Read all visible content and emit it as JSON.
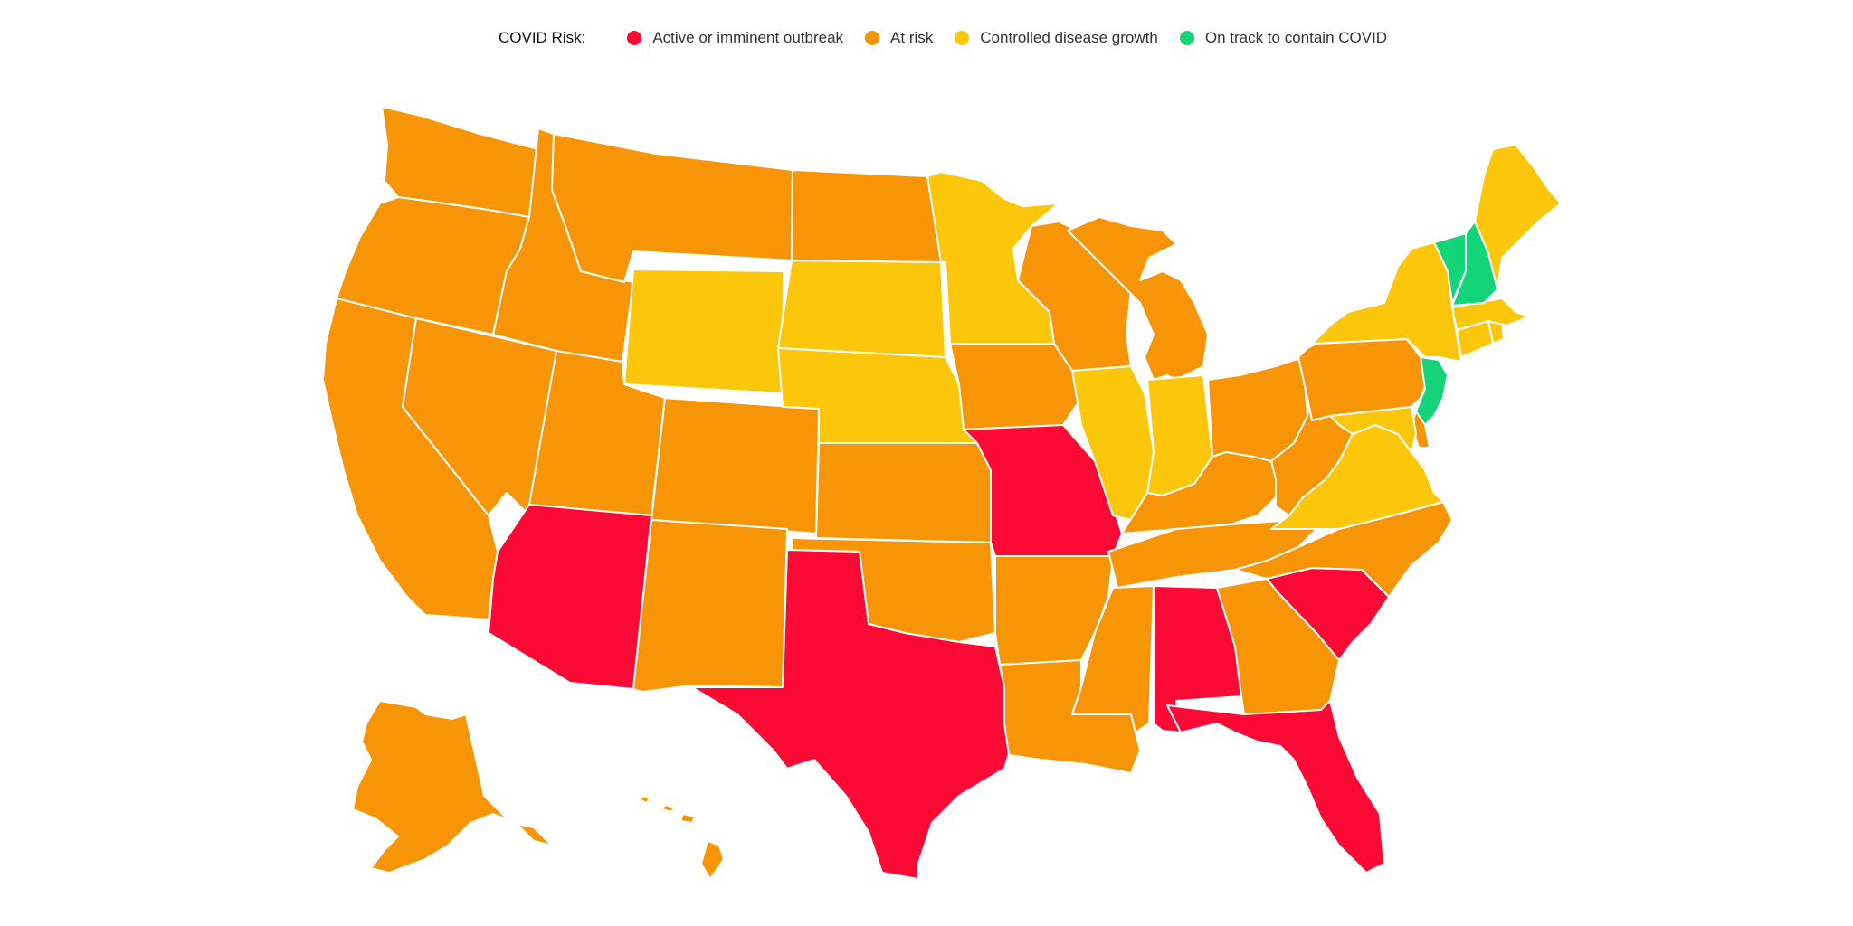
{
  "legend": {
    "title": "COVID Risk:",
    "categories": [
      {
        "key": "active",
        "label": "Active or imminent outbreak",
        "color": "#fc0a35"
      },
      {
        "key": "risk",
        "label": "At risk",
        "color": "#f79507"
      },
      {
        "key": "controlled",
        "label": "Controlled disease growth",
        "color": "#fcc70b"
      },
      {
        "key": "track",
        "label": "On track to contain COVID",
        "color": "#14d47a"
      }
    ]
  },
  "states": [
    {
      "code": "WA",
      "risk": "risk"
    },
    {
      "code": "OR",
      "risk": "risk"
    },
    {
      "code": "CA",
      "risk": "risk"
    },
    {
      "code": "ID",
      "risk": "risk"
    },
    {
      "code": "NV",
      "risk": "risk"
    },
    {
      "code": "MT",
      "risk": "risk"
    },
    {
      "code": "WY",
      "risk": "controlled"
    },
    {
      "code": "UT",
      "risk": "risk"
    },
    {
      "code": "AZ",
      "risk": "active"
    },
    {
      "code": "CO",
      "risk": "risk"
    },
    {
      "code": "NM",
      "risk": "risk"
    },
    {
      "code": "ND",
      "risk": "risk"
    },
    {
      "code": "SD",
      "risk": "controlled"
    },
    {
      "code": "NE",
      "risk": "controlled"
    },
    {
      "code": "KS",
      "risk": "risk"
    },
    {
      "code": "OK",
      "risk": "risk"
    },
    {
      "code": "TX",
      "risk": "active"
    },
    {
      "code": "MN",
      "risk": "controlled"
    },
    {
      "code": "IA",
      "risk": "risk"
    },
    {
      "code": "MO",
      "risk": "active"
    },
    {
      "code": "AR",
      "risk": "risk"
    },
    {
      "code": "LA",
      "risk": "risk"
    },
    {
      "code": "WI",
      "risk": "risk"
    },
    {
      "code": "IL",
      "risk": "controlled"
    },
    {
      "code": "MI",
      "risk": "risk"
    },
    {
      "code": "IN",
      "risk": "controlled"
    },
    {
      "code": "OH",
      "risk": "risk"
    },
    {
      "code": "KY",
      "risk": "risk"
    },
    {
      "code": "TN",
      "risk": "risk"
    },
    {
      "code": "MS",
      "risk": "risk"
    },
    {
      "code": "AL",
      "risk": "active"
    },
    {
      "code": "GA",
      "risk": "risk"
    },
    {
      "code": "FL",
      "risk": "active"
    },
    {
      "code": "SC",
      "risk": "active"
    },
    {
      "code": "NC",
      "risk": "risk"
    },
    {
      "code": "VA",
      "risk": "controlled"
    },
    {
      "code": "WV",
      "risk": "risk"
    },
    {
      "code": "PA",
      "risk": "risk"
    },
    {
      "code": "NY",
      "risk": "controlled"
    },
    {
      "code": "NJ",
      "risk": "track"
    },
    {
      "code": "DE",
      "risk": "risk"
    },
    {
      "code": "MD",
      "risk": "controlled"
    },
    {
      "code": "CT",
      "risk": "controlled"
    },
    {
      "code": "RI",
      "risk": "controlled"
    },
    {
      "code": "MA",
      "risk": "controlled"
    },
    {
      "code": "VT",
      "risk": "track"
    },
    {
      "code": "NH",
      "risk": "track"
    },
    {
      "code": "ME",
      "risk": "controlled"
    },
    {
      "code": "AK",
      "risk": "risk"
    },
    {
      "code": "HI",
      "risk": "risk"
    }
  ]
}
